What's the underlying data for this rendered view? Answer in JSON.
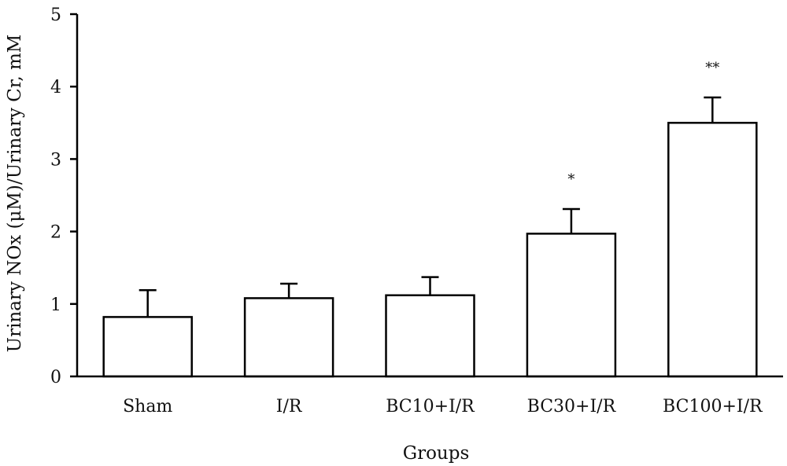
{
  "chart_data": {
    "type": "bar",
    "xlabel": "Groups",
    "ylabel": "Urinary NOx (μM)/Urinary Cr, mM",
    "ylim": [
      0,
      5
    ],
    "yticks": [
      0,
      1,
      2,
      3,
      4,
      5
    ],
    "grid": false,
    "categories": [
      "Sham",
      "I/R",
      "BC10+I/R",
      "BC30+I/R",
      "BC100+I/R"
    ],
    "values": [
      0.82,
      1.08,
      1.12,
      1.97,
      3.5
    ],
    "errors": [
      0.37,
      0.2,
      0.25,
      0.34,
      0.35
    ],
    "annotations": [
      "",
      "",
      "",
      "*",
      "**"
    ],
    "colors": {
      "bar_fill": "#ffffff",
      "bar_stroke": "#000000",
      "axis": "#000000"
    }
  }
}
